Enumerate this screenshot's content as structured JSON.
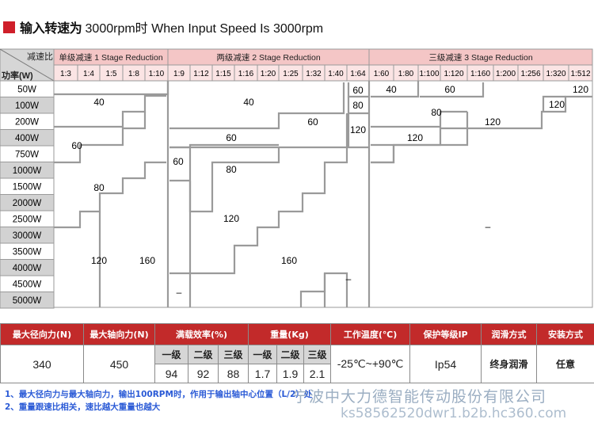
{
  "title": {
    "cn": "输入转速为",
    "en": "3000rpm时 When Input Speed Is 3000rpm"
  },
  "matrix": {
    "corner_top": "减速比",
    "corner_bottom": "功率(W)",
    "groups": [
      {
        "label": "单级减速 1 Stage Reduction"
      },
      {
        "label": "两级减速 2 Stage Reduction"
      },
      {
        "label": "三级减速 3 Stage Reduction"
      }
    ],
    "ratios": [
      "1:3",
      "1:4",
      "1:5",
      "1:8",
      "1:10",
      "1:9",
      "1:12",
      "1:15",
      "1:16",
      "1:20",
      "1:25",
      "1:32",
      "1:40",
      "1:64",
      "1:60",
      "1:80",
      "1:100",
      "1:120",
      "1:160",
      "1:200",
      "1:256",
      "1:320",
      "1:512"
    ],
    "powers": [
      "50W",
      "100W",
      "200W",
      "400W",
      "750W",
      "1000W",
      "1500W",
      "2000W",
      "2500W",
      "3000W",
      "3500W",
      "4000W",
      "4500W",
      "5000W"
    ],
    "cells": {
      "s1_40": "40",
      "s1_60": "60",
      "s1_80": "80",
      "s1_120": "120",
      "s1_160": "160",
      "s2_40": "40",
      "s2_60a": "60",
      "s2_60b": "60",
      "s2_60c": "60",
      "s2_80": "80",
      "s2_120": "120",
      "s2_160": "160",
      "s2_64_60": "60",
      "s2_64_80": "80",
      "s2_64_120": "120",
      "s2_dash1": "–",
      "s2_dash2": "–",
      "s3_40": "40",
      "s3_60": "60",
      "s3_120a": "120",
      "s3_80": "80",
      "s3_120b": "120",
      "s3_120c": "120",
      "s3_120d": "120",
      "s3_dash": "–"
    }
  },
  "spec_table": {
    "headers": [
      "最大径向力(N)",
      "最大轴向力(N)",
      "满载效率(%)",
      "重量(Kg)",
      "工作温度(℃)",
      "保护等级IP",
      "润滑方式",
      "安装方式"
    ],
    "stage_labels": [
      "一级",
      "二级",
      "三级"
    ],
    "efficiency": [
      "94",
      "92",
      "88"
    ],
    "weight": [
      "1.7",
      "1.9",
      "2.1"
    ],
    "radial": "340",
    "axial": "450",
    "temperature": "-25℃~+90℃",
    "ip": "Ip54",
    "lubrication": "终身润滑",
    "mounting": "任意"
  },
  "notes": [
    "1、最大径向力与最大轴向力，输出100RPM时，作用于输出轴中心位置（L/2）处",
    "2、重量跟速比相关，速比越大重量也越大"
  ],
  "watermark": {
    "line1": "宁波中大力德智能传动股份有限公司",
    "line2": "ks58562520dwr1.b2b.hc360.com"
  },
  "colors": {
    "accent": "#cf1f2a",
    "header_pink": "#f4c6c6",
    "ratio_pink": "#fbe4e4",
    "left_gray": "#d2d2d2",
    "table_red": "#c22a2a"
  }
}
